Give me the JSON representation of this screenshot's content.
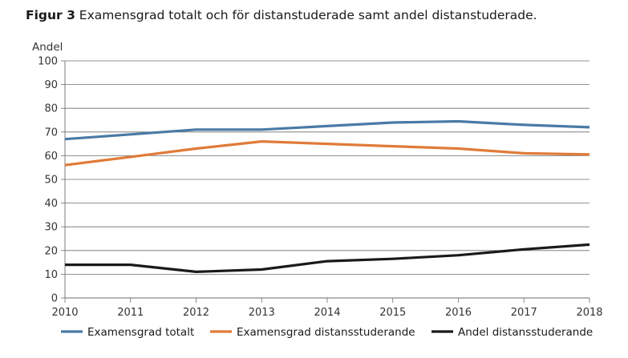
{
  "figure": {
    "label": "Figur 3",
    "caption": "Examensgrad totalt och för distanstuderade samt andel distanstuderade."
  },
  "chart_data": {
    "type": "line",
    "title": "Figur 3 Examensgrad totalt och för distanstuderade samt andel distanstuderade.",
    "ylabel": "Andel",
    "xlabel": "",
    "x": [
      "2010",
      "2011",
      "2012",
      "2013",
      "2014",
      "2015",
      "2016",
      "2017",
      "2018"
    ],
    "yticks": [
      0,
      10,
      20,
      30,
      40,
      50,
      60,
      70,
      80,
      90,
      100
    ],
    "ylim": [
      0,
      100
    ],
    "grid": "horizontal",
    "legend_position": "bottom",
    "series": [
      {
        "name": "Examensgrad totalt",
        "color": "#4a7aa6",
        "values": [
          67,
          69,
          71,
          71,
          72.5,
          74,
          74.5,
          73,
          72
        ]
      },
      {
        "name": "Examensgrad distansstuderande",
        "color": "#e07b39",
        "values": [
          56,
          59.5,
          63,
          66,
          65,
          64,
          63,
          61,
          60.5
        ]
      },
      {
        "name": "Andel distansstuderande",
        "color": "#1a1a1a",
        "values": [
          14,
          14,
          11,
          12,
          15.5,
          16.5,
          18,
          20.5,
          22.5
        ]
      }
    ]
  }
}
